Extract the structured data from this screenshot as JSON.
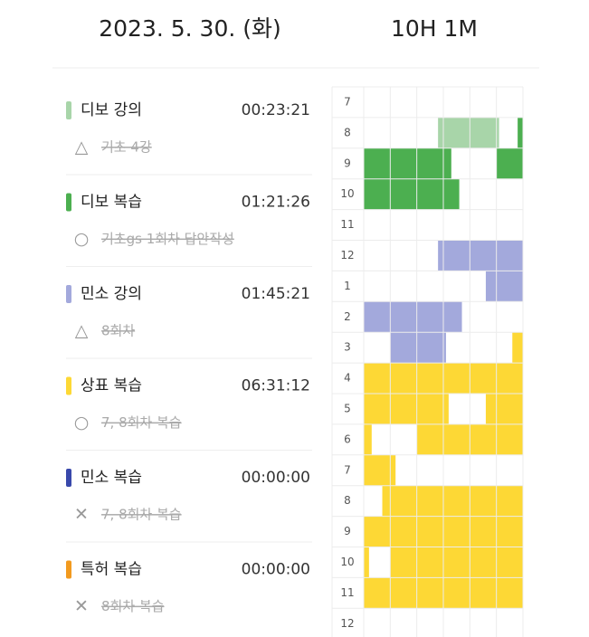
{
  "header": {
    "date": "2023. 5. 30. (화)",
    "total": "10H 1M"
  },
  "subjects": [
    {
      "name": "디보 강의",
      "time": "00:23:21",
      "color": "#a8d5a9",
      "task_icon": "△",
      "task": "기초 4강"
    },
    {
      "name": "디보 복습",
      "time": "01:21:26",
      "color": "#4caf50",
      "task_icon": "○",
      "task": "기초gs 1회차 답안작성"
    },
    {
      "name": "민소 강의",
      "time": "01:45:21",
      "color": "#a3a9dc",
      "task_icon": "△",
      "task": "8회차"
    },
    {
      "name": "상표 복습",
      "time": "06:31:12",
      "color": "#fdd835",
      "task_icon": "○",
      "task": "7, 8회차 복습"
    },
    {
      "name": "민소 복습",
      "time": "00:00:00",
      "color": "#3949ab",
      "task_icon": "✕",
      "task": "7, 8회차 복습"
    },
    {
      "name": "특허 복습",
      "time": "00:00:00",
      "color": "#f29a1f",
      "task_icon": "✕",
      "task": "8회차 복습"
    }
  ],
  "timetable": {
    "hours": [
      7,
      8,
      9,
      10,
      11,
      12,
      1,
      2,
      3,
      4,
      5,
      6,
      7,
      8,
      9,
      10,
      11,
      12
    ],
    "blocks": [
      {
        "subject": 0,
        "row": 1,
        "start": 28,
        "end": 51
      },
      {
        "subject": 1,
        "row": 1,
        "start": 58,
        "end": 60
      },
      {
        "subject": 1,
        "row": 2,
        "start": 0,
        "end": 33
      },
      {
        "subject": 1,
        "row": 2,
        "start": 50,
        "end": 60
      },
      {
        "subject": 1,
        "row": 3,
        "start": 0,
        "end": 36
      },
      {
        "subject": 2,
        "row": 5,
        "start": 28,
        "end": 60
      },
      {
        "subject": 2,
        "row": 6,
        "start": 46,
        "end": 60
      },
      {
        "subject": 2,
        "row": 7,
        "start": 0,
        "end": 37
      },
      {
        "subject": 2,
        "row": 8,
        "start": 10,
        "end": 31
      },
      {
        "subject": 3,
        "row": 8,
        "start": 56,
        "end": 60
      },
      {
        "subject": 3,
        "row": 9,
        "start": 0,
        "end": 60
      },
      {
        "subject": 3,
        "row": 10,
        "start": 0,
        "end": 32
      },
      {
        "subject": 3,
        "row": 10,
        "start": 46,
        "end": 60
      },
      {
        "subject": 3,
        "row": 11,
        "start": 0,
        "end": 3
      },
      {
        "subject": 3,
        "row": 11,
        "start": 20,
        "end": 60
      },
      {
        "subject": 3,
        "row": 12,
        "start": 0,
        "end": 12
      },
      {
        "subject": 3,
        "row": 13,
        "start": 7,
        "end": 60
      },
      {
        "subject": 3,
        "row": 14,
        "start": 0,
        "end": 60
      },
      {
        "subject": 3,
        "row": 15,
        "start": 0,
        "end": 2
      },
      {
        "subject": 3,
        "row": 15,
        "start": 10,
        "end": 60
      },
      {
        "subject": 3,
        "row": 16,
        "start": 0,
        "end": 60
      }
    ]
  }
}
